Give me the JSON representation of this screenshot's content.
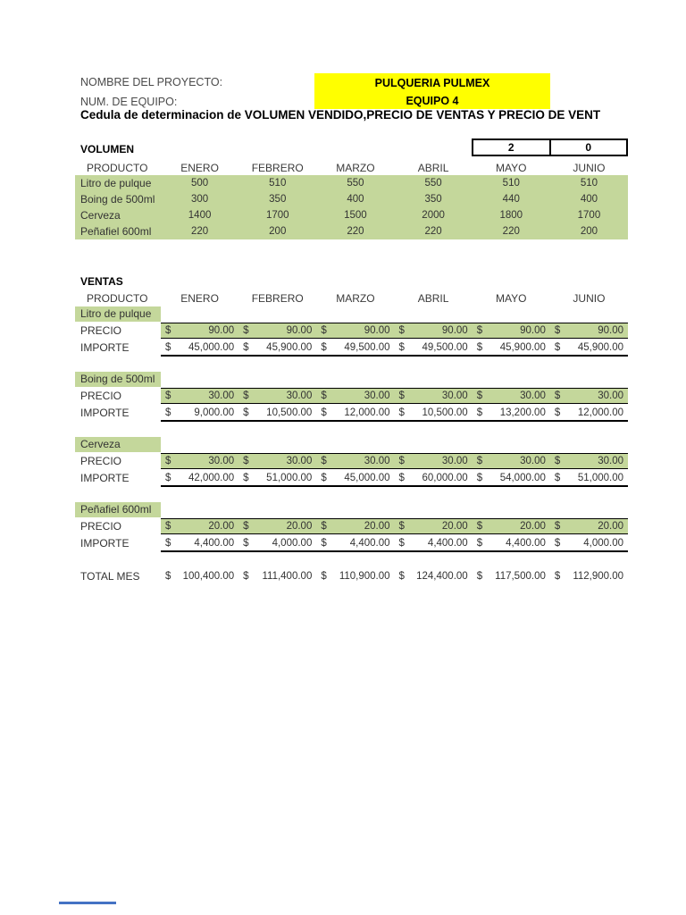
{
  "header": {
    "project_label": "NOMBRE DEL PROYECTO:",
    "project_value": "PULQUERIA PULMEX",
    "team_label": "NUM. DE EQUIPO:",
    "team_value": "EQUIPO 4",
    "title": "Cedula de determinacion de VOLUMEN VENDIDO,PRECIO DE VENTAS Y PRECIO DE VENT"
  },
  "colors": {
    "highlight_yellow": "#ffff00",
    "cell_green": "#c4d79b",
    "accent_blue": "#4472c4"
  },
  "months": [
    "ENERO",
    "FEBRERO",
    "MARZO",
    "ABRIL",
    "MAYO",
    "JUNIO"
  ],
  "volumen": {
    "section_label": "VOLUMEN",
    "product_header": "PRODUCTO",
    "code_cells": [
      "2",
      "0"
    ],
    "rows": [
      {
        "product": "Litro de pulque",
        "values": [
          "500",
          "510",
          "550",
          "550",
          "510",
          "510"
        ]
      },
      {
        "product": "Boing de 500ml",
        "values": [
          "300",
          "350",
          "400",
          "350",
          "440",
          "400"
        ]
      },
      {
        "product": "Cerveza",
        "values": [
          "1400",
          "1700",
          "1500",
          "2000",
          "1800",
          "1700"
        ]
      },
      {
        "product": "Peñafiel 600ml",
        "values": [
          "220",
          "200",
          "220",
          "220",
          "220",
          "200"
        ]
      }
    ]
  },
  "ventas": {
    "section_label": "VENTAS",
    "product_header": "PRODUCTO",
    "precio_label": "PRECIO",
    "importe_label": "IMPORTE",
    "currency_symbol": "$",
    "blocks": [
      {
        "product": "Litro de pulque",
        "precio": [
          "90.00",
          "90.00",
          "90.00",
          "90.00",
          "90.00",
          "90.00"
        ],
        "importe": [
          "45,000.00",
          "45,900.00",
          "49,500.00",
          "49,500.00",
          "45,900.00",
          "45,900.00"
        ]
      },
      {
        "product": "Boing de 500ml",
        "precio": [
          "30.00",
          "30.00",
          "30.00",
          "30.00",
          "30.00",
          "30.00"
        ],
        "importe": [
          "9,000.00",
          "10,500.00",
          "12,000.00",
          "10,500.00",
          "13,200.00",
          "12,000.00"
        ]
      },
      {
        "product": "Cerveza",
        "precio": [
          "30.00",
          "30.00",
          "30.00",
          "30.00",
          "30.00",
          "30.00"
        ],
        "importe": [
          "42,000.00",
          "51,000.00",
          "45,000.00",
          "60,000.00",
          "54,000.00",
          "51,000.00"
        ]
      },
      {
        "product": "Peñafiel 600ml",
        "precio": [
          "20.00",
          "20.00",
          "20.00",
          "20.00",
          "20.00",
          "20.00"
        ],
        "importe": [
          "4,400.00",
          "4,000.00",
          "4,400.00",
          "4,400.00",
          "4,400.00",
          "4,000.00"
        ]
      }
    ],
    "total": {
      "label": "TOTAL MES",
      "values": [
        "100,400.00",
        "111,400.00",
        "110,900.00",
        "124,400.00",
        "117,500.00",
        "112,900.00"
      ]
    }
  }
}
